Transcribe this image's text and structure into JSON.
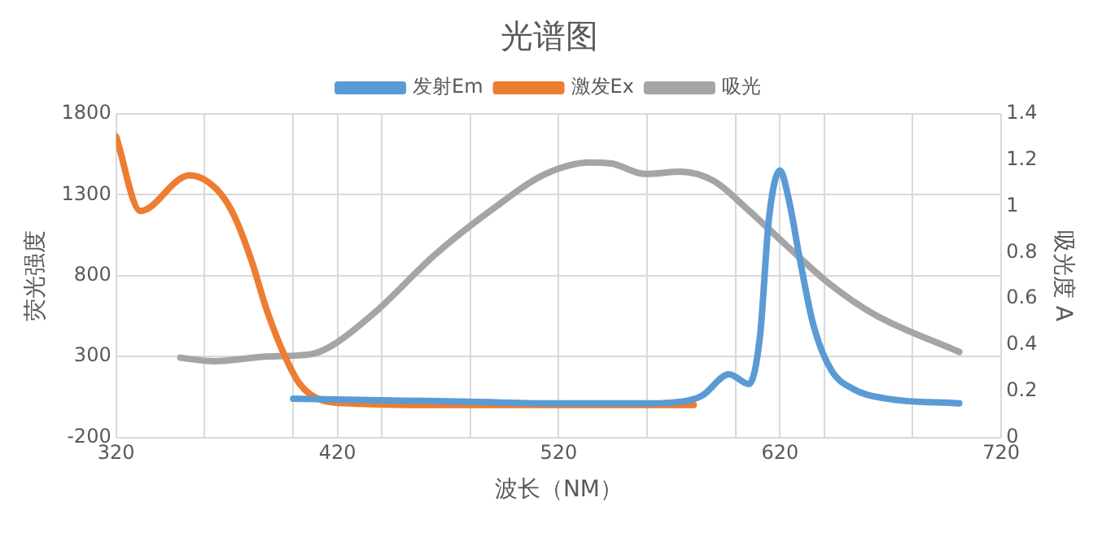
{
  "chart_data": {
    "type": "line",
    "title": "光谱图",
    "xlabel": "波长（NM）",
    "ylabel": "荧光强度",
    "y2label": "吸光度 A",
    "xlim": [
      320,
      720
    ],
    "xticks": [
      320,
      {
        "value": 360,
        "label": null
      },
      {
        "value": 400,
        "label": null
      },
      420,
      {
        "value": 440,
        "label": null
      },
      {
        "value": 480,
        "label": null
      },
      520,
      {
        "value": 560,
        "label": null
      },
      {
        "value": 600,
        "label": null
      },
      620,
      {
        "value": 640,
        "label": null
      },
      {
        "value": 680,
        "label": null
      },
      720
    ],
    "ylim": [
      -200,
      1800
    ],
    "yticks": [
      -200,
      300,
      800,
      1300,
      1800
    ],
    "y2lim": [
      0,
      1.4
    ],
    "y2ticks": [
      0,
      0.2,
      0.4,
      0.6,
      0.8,
      1,
      1.2,
      1.4
    ],
    "grid": true,
    "legend": "top",
    "marker": "none",
    "line_style": "solid",
    "series": [
      {
        "name": "发射Em",
        "color": "#5b9bd5",
        "x": [
          400,
          440,
          480,
          520,
          560,
          579,
          585,
          597,
          606,
          611,
          615,
          620,
          624,
          629,
          635,
          643,
          653,
          668,
          701
        ],
        "values": [
          40,
          30,
          20,
          10,
          10,
          30,
          60,
          190,
          130,
          430,
          1150,
          1450,
          1270,
          900,
          500,
          220,
          100,
          40,
          10
        ]
      },
      {
        "name": "激发Ex",
        "color": "#ed7d31",
        "x": [
          320,
          331,
          349,
          353,
          365,
          373,
          381,
          388,
          396,
          403,
          413,
          426,
          464,
          520,
          581
        ],
        "values": [
          1660,
          1200,
          1400,
          1420,
          1340,
          1180,
          900,
          590,
          310,
          130,
          30,
          10,
          0,
          0,
          0
        ]
      },
      {
        "name": "吸光",
        "color": "#a5a5a5",
        "axis": "y2",
        "x": [
          349,
          364,
          388,
          408,
          418,
          438,
          464,
          489,
          514,
          534,
          544,
          559,
          575,
          590,
          605,
          623,
          643,
          663,
          701
        ],
        "values": [
          0.345,
          0.33,
          0.35,
          0.36,
          0.4,
          0.55,
          0.79,
          0.98,
          1.14,
          1.19,
          1.185,
          1.14,
          1.15,
          1.11,
          0.99,
          0.83,
          0.66,
          0.53,
          0.37
        ]
      }
    ]
  }
}
